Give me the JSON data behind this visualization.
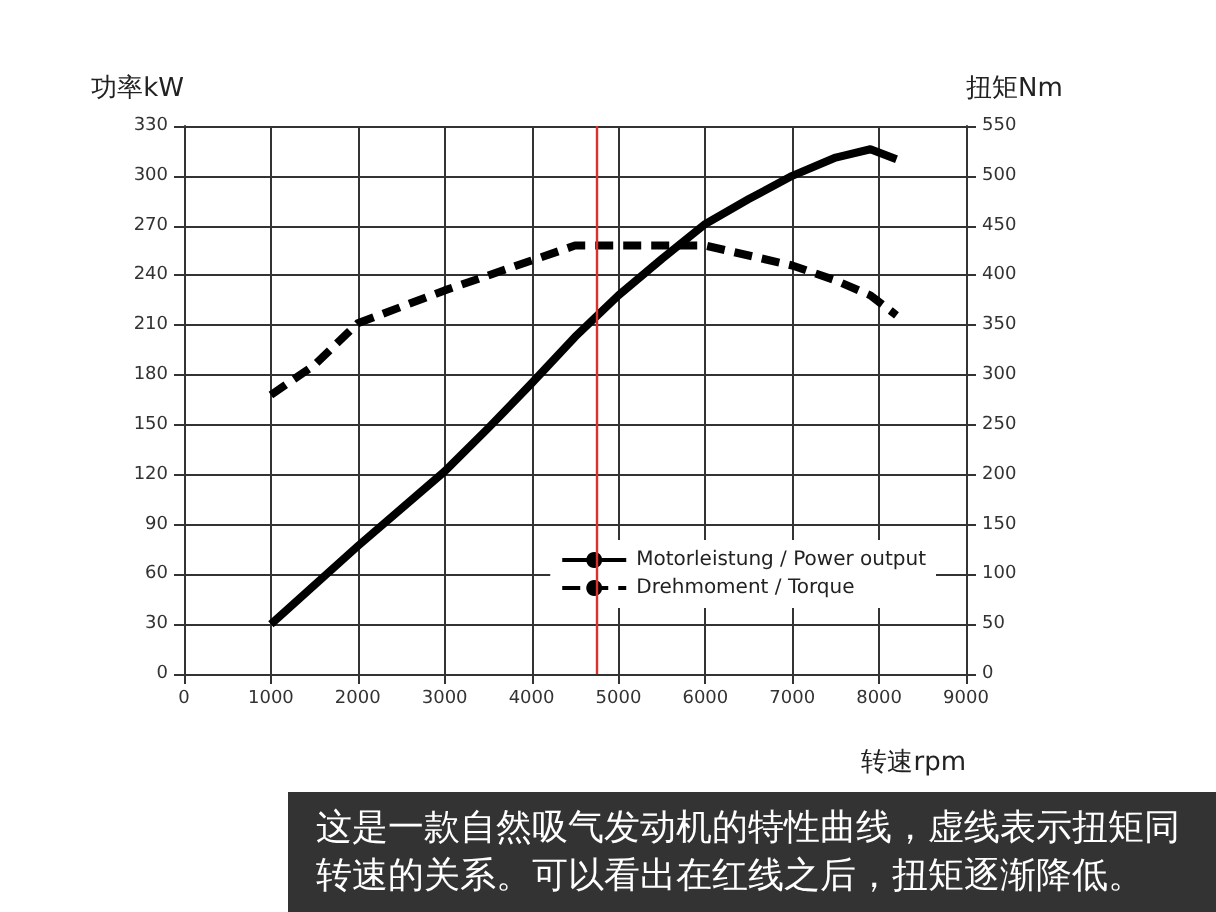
{
  "chart_data": {
    "type": "line",
    "ylabel": "功率kW",
    "y2label": "扭矩Nm",
    "xlabel": "转速rpm",
    "annotations": [
      "这是一款自然吸气发动机的特性曲线，虚线表示扭矩同转速的关系。可以看出在红线之后，扭矩逐渐降低。"
    ],
    "series": [
      {
        "name": "Motorleistung / Power output",
        "color": "#000000",
        "line_style": "solid",
        "x": [
          1000,
          2000,
          3000,
          3500,
          4000,
          4500,
          5000,
          5500,
          6000,
          6500,
          7000,
          7500,
          7900,
          8200
        ],
        "values": [
          30,
          77,
          122,
          148,
          175,
          203,
          228,
          250,
          271,
          286,
          300,
          311,
          316,
          310
        ]
      },
      {
        "name": "Drehmoment / Torque",
        "color": "#000000",
        "line_style": "dashed",
        "axis": "y2",
        "x": [
          1000,
          1500,
          2000,
          3000,
          4000,
          4500,
          5000,
          5500,
          6000,
          7000,
          7500,
          7900,
          8200
        ],
        "values": [
          280,
          310,
          352,
          385,
          415,
          430,
          430,
          430,
          430,
          410,
          395,
          380,
          360
        ]
      }
    ],
    "xlim": [
      0,
      9000
    ],
    "xticks": [
      0,
      1000,
      2000,
      3000,
      4000,
      5000,
      6000,
      7000,
      8000,
      9000
    ],
    "ylim": [
      0,
      330
    ],
    "yticks": [
      0,
      30,
      60,
      90,
      120,
      150,
      180,
      210,
      240,
      270,
      300,
      330
    ],
    "y2lim": [
      0,
      550
    ],
    "y2ticks": [
      0,
      50,
      100,
      150,
      200,
      250,
      300,
      350,
      400,
      450,
      500,
      550
    ],
    "ref_lines": [
      {
        "axis": "x",
        "value": 4750,
        "color": "#d9312b"
      }
    ],
    "grid": true,
    "legend": "bottom right",
    "marker": "none"
  }
}
